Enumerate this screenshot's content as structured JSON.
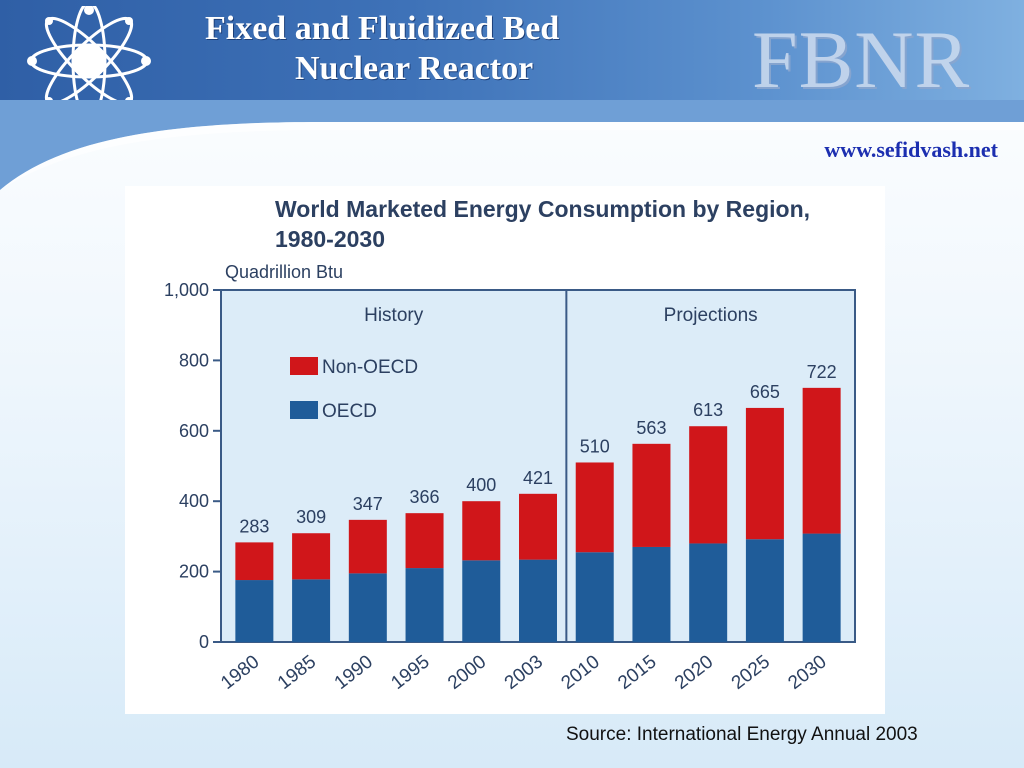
{
  "header": {
    "title_line1": "Fixed and Fluidized Bed",
    "title_line2": "Nuclear Reactor",
    "brand": "FBNR",
    "website": "www.sefidvash.net"
  },
  "colors": {
    "header_blue": "#3e72b8",
    "non_oecd": "#d0161a",
    "oecd": "#1f5c99",
    "plot_bg": "#dcecf8",
    "axis": "#3a5a86"
  },
  "chart_data": {
    "type": "bar",
    "stacked": true,
    "title": "World Marketed Energy Consumption by Region, 1980-2030",
    "ylabel": "Quadrillion Btu",
    "ylim": [
      0,
      1000
    ],
    "yticks": [
      "0",
      "200",
      "400",
      "600",
      "800",
      "1,000"
    ],
    "categories": [
      "1980",
      "1985",
      "1990",
      "1995",
      "2000",
      "2003",
      "2010",
      "2015",
      "2020",
      "2025",
      "2030"
    ],
    "totals": [
      283,
      309,
      347,
      366,
      400,
      421,
      510,
      563,
      613,
      665,
      722
    ],
    "series": [
      {
        "name": "OECD",
        "values": [
          176,
          178,
          195,
          210,
          232,
          234,
          255,
          270,
          280,
          292,
          308
        ]
      },
      {
        "name": "Non-OECD",
        "values": [
          107,
          131,
          152,
          156,
          168,
          187,
          255,
          293,
          333,
          373,
          414
        ]
      }
    ],
    "sections": [
      "History",
      "Projections"
    ],
    "legend": [
      "Non-OECD",
      "OECD"
    ]
  },
  "footer": {
    "source": "Source: International Energy Annual 2003"
  }
}
